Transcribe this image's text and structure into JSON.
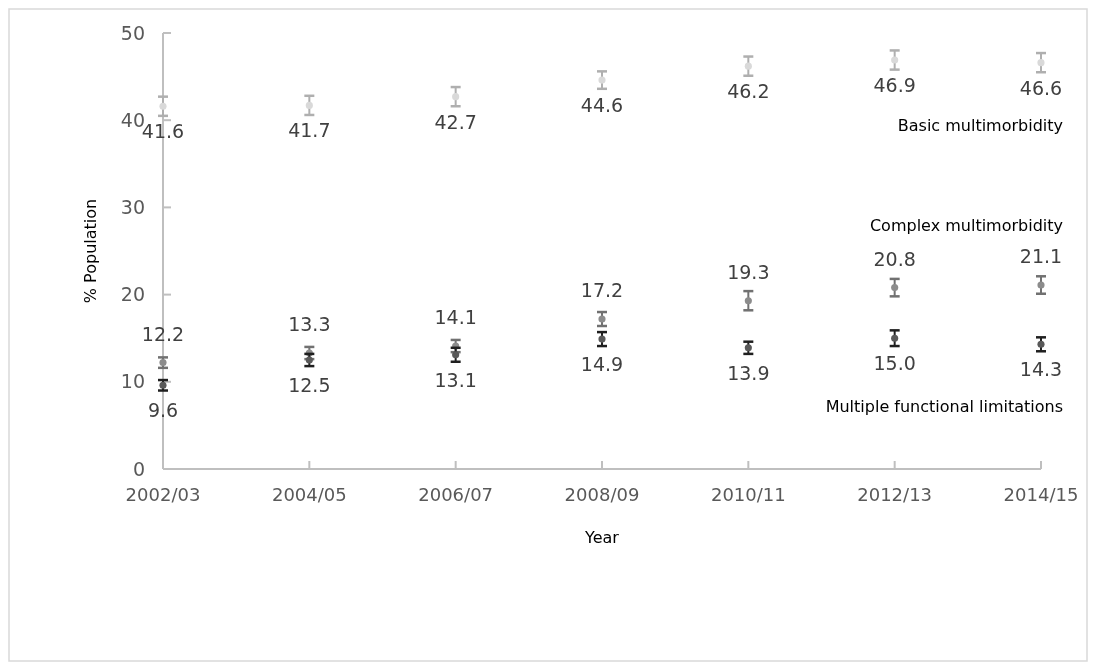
{
  "chart_data": {
    "type": "scatter",
    "xlabel": "Year",
    "ylabel": "% Population",
    "categories": [
      "2002/03",
      "2004/05",
      "2006/07",
      "2008/09",
      "2010/11",
      "2012/13",
      "2014/15"
    ],
    "ylim": [
      0,
      50
    ],
    "yticks": [
      0,
      10,
      20,
      30,
      40,
      50
    ],
    "grid": false,
    "marker": "circle",
    "annotations": [
      "Basic multimorbidity",
      "Complex multimorbidity",
      "Multiple functional limitations"
    ],
    "series": [
      {
        "color": "#d9d9d9",
        "values": [
          41.6,
          41.7,
          42.7,
          44.6,
          46.2,
          46.9,
          46.6
        ],
        "errors": [
          1.1,
          1.1,
          1.1,
          1.0,
          1.1,
          1.1,
          1.1
        ],
        "value_labels": [
          "41.6",
          "41.7",
          "42.7",
          "44.6",
          "46.2",
          "46.9",
          "46.6"
        ]
      },
      {
        "color": "#8c8c8c",
        "values": [
          12.2,
          13.3,
          14.1,
          17.2,
          19.3,
          20.8,
          21.1
        ],
        "errors": [
          0.6,
          0.7,
          0.7,
          0.8,
          1.1,
          1.0,
          1.0
        ],
        "value_labels": [
          "12.2",
          "13.3",
          "14.1",
          "17.2",
          "19.3",
          "20.8",
          "21.1"
        ]
      },
      {
        "color": "#595959",
        "values": [
          9.6,
          12.5,
          13.1,
          14.9,
          13.9,
          15.0,
          14.3
        ],
        "errors": [
          0.6,
          0.7,
          0.8,
          0.8,
          0.7,
          0.9,
          0.8
        ],
        "value_labels": [
          "9.6",
          "12.5",
          "13.1",
          "14.9",
          "13.9",
          "15.0",
          "14.3"
        ]
      }
    ]
  }
}
